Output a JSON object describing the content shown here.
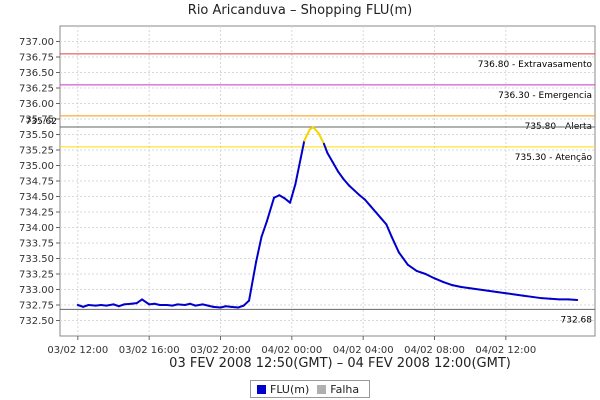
{
  "chart_data": {
    "type": "line",
    "title": "Rio Aricanduva – Shopping FLU(m)",
    "xlabel": "03 FEV 2008 12:50(GMT) – 04 FEV 2008 12:00(GMT)",
    "ylabel": "",
    "ylim": [
      732.25,
      737.25
    ],
    "y_ticks": [
      "732.50",
      "732.75",
      "733.00",
      "733.25",
      "733.50",
      "733.75",
      "734.00",
      "734.25",
      "734.50",
      "734.75",
      "735.00",
      "735.25",
      "735.50",
      "735.75",
      "736.00",
      "736.25",
      "736.50",
      "736.75",
      "737.00"
    ],
    "x_ticks": [
      "03/02 12:00",
      "03/02 16:00",
      "03/02 20:00",
      "04/02 00:00",
      "04/02 04:00",
      "04/02 08:00",
      "04/02 12:00"
    ],
    "x_hours_range": [
      -1,
      29
    ],
    "grid": true,
    "reference_lines": [
      {
        "value": 736.8,
        "label": "736.80 - Extravasamento",
        "color": "#e04040"
      },
      {
        "value": 736.3,
        "label": "736.30 - Emergencia",
        "color": "#cc33cc"
      },
      {
        "value": 735.8,
        "label": "735.80 - Alerta",
        "color": "#ff9900"
      },
      {
        "value": 735.3,
        "label": "735.30 - Atenção",
        "color": "#ffdd00"
      }
    ],
    "max_value": {
      "value": 735.62,
      "label": "735.62"
    },
    "min_value": {
      "value": 732.68,
      "label": "732.68"
    },
    "legend": [
      {
        "name": "FLU(m)",
        "color": "#0000cc"
      },
      {
        "name": "Falha",
        "color": "#b0b0b0"
      }
    ],
    "series": [
      {
        "name": "FLU(m)",
        "color": "#0000cc",
        "x": [
          0.0,
          0.3,
          0.6,
          1.0,
          1.3,
          1.6,
          2.0,
          2.3,
          2.6,
          3.0,
          3.3,
          3.6,
          4.0,
          4.3,
          4.6,
          5.0,
          5.3,
          5.6,
          6.0,
          6.3,
          6.6,
          7.0,
          7.3,
          7.6,
          8.0,
          8.3,
          8.6,
          9.0,
          9.3,
          9.6,
          10.0,
          10.3,
          10.6,
          11.0,
          11.3,
          11.6,
          11.9,
          12.2,
          12.5,
          12.7,
          13.0,
          13.2,
          13.5,
          13.8,
          14.0,
          14.3,
          14.6,
          14.9,
          15.2,
          15.5,
          15.8,
          16.1,
          16.4,
          16.7,
          17.0,
          17.3,
          17.6,
          18.0,
          18.5,
          19.0,
          19.5,
          20.0,
          20.5,
          21.0,
          21.5,
          22.0,
          22.5,
          23.0,
          23.5,
          24.0,
          24.5,
          25.0,
          25.5,
          26.0,
          26.5,
          27.0,
          27.5,
          28.0
        ],
        "y": [
          732.75,
          732.72,
          732.75,
          732.74,
          732.75,
          732.74,
          732.76,
          732.73,
          732.76,
          732.77,
          732.78,
          732.84,
          732.76,
          732.77,
          732.75,
          732.75,
          732.74,
          732.76,
          732.75,
          732.77,
          732.74,
          732.76,
          732.74,
          732.72,
          732.71,
          732.73,
          732.72,
          732.71,
          732.74,
          732.82,
          733.45,
          733.85,
          734.1,
          734.48,
          734.52,
          734.47,
          734.4,
          734.7,
          735.12,
          735.4,
          735.58,
          735.62,
          735.52,
          735.35,
          735.2,
          735.05,
          734.9,
          734.78,
          734.68,
          734.6,
          734.52,
          734.45,
          734.35,
          734.25,
          734.15,
          734.05,
          733.85,
          733.6,
          733.4,
          733.3,
          733.25,
          733.18,
          733.12,
          733.07,
          733.04,
          733.02,
          733.0,
          732.98,
          732.96,
          732.94,
          732.92,
          732.9,
          732.88,
          732.86,
          732.85,
          732.84,
          732.84,
          732.83
        ]
      }
    ]
  }
}
